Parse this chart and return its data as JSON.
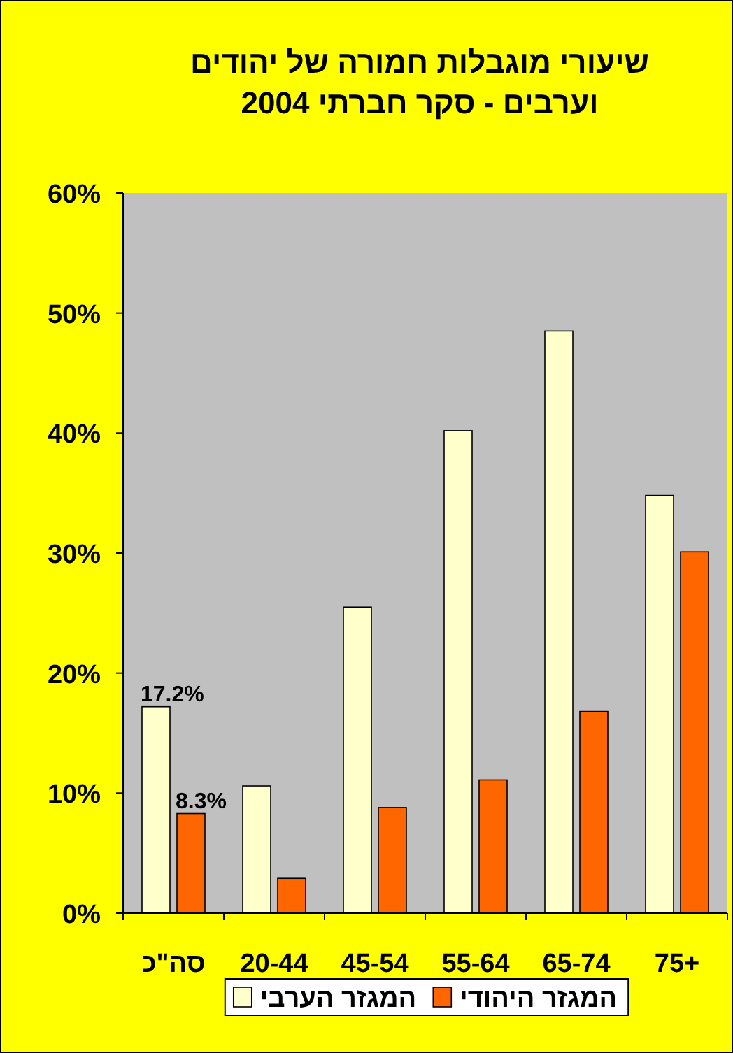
{
  "chart_data": {
    "type": "bar",
    "title": "שיעורי מוגבלות חמורה של יהודים וערבים  - סקר חברתי 2004",
    "categories": [
      "סה\"כ",
      "20-44",
      "45-54",
      "55-64",
      "65-74",
      "75+"
    ],
    "series": [
      {
        "name": "המגזר הערבי",
        "color": "#ffffcc",
        "values": [
          17.2,
          10.6,
          25.5,
          40.2,
          48.5,
          34.8
        ],
        "value_labels": [
          "17.2%",
          null,
          null,
          null,
          null,
          null
        ]
      },
      {
        "name": "המגזר היהודי",
        "color": "#ff6600",
        "values": [
          8.3,
          2.9,
          8.8,
          11.1,
          16.8,
          30.1
        ],
        "value_labels": [
          "8.3%",
          null,
          null,
          null,
          null,
          null
        ]
      }
    ],
    "ylim": [
      0,
      60
    ],
    "yticks": [
      {
        "value": 0,
        "label": "0%"
      },
      {
        "value": 10,
        "label": "10%"
      },
      {
        "value": 20,
        "label": "20%"
      },
      {
        "value": 30,
        "label": "30%"
      },
      {
        "value": 40,
        "label": "40%"
      },
      {
        "value": 50,
        "label": "50%"
      },
      {
        "value": 60,
        "label": "60%"
      }
    ],
    "grid": false,
    "legend": "bottom"
  }
}
